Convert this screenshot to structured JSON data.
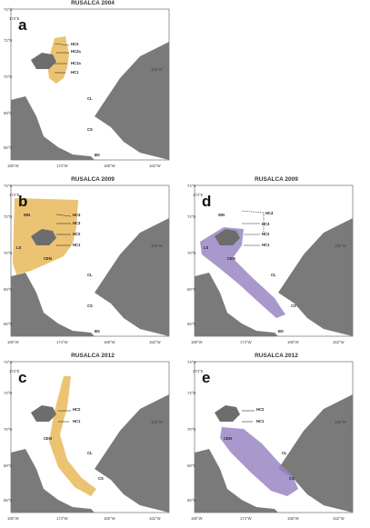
{
  "colors": {
    "land": "#7a7a7a",
    "yellow": "#e8b85a",
    "purple": "#9a86c2",
    "island": "#6d6d6d"
  },
  "panels": [
    {
      "id": "a",
      "label": "a",
      "title": "RUSALCA 2004",
      "sites": [
        "HC3",
        "HC2a",
        "HC1a",
        "HC1",
        "CL",
        "CS",
        "BS"
      ],
      "shade": "yellow"
    },
    {
      "id": "b",
      "label": "b",
      "title": "RUSALCA 2009",
      "sites": [
        "WN",
        "HC4",
        "HC3",
        "HC2",
        "HC1",
        "LS",
        "CEN",
        "CL",
        "CS",
        "BS"
      ],
      "shade": "yellow"
    },
    {
      "id": "d",
      "label": "d",
      "title": "RUSALCA 2009",
      "sites": [
        "WN",
        "HC4",
        "HC3",
        "HC2",
        "HC1",
        "LS",
        "CEN",
        "CL",
        "CS",
        "BS"
      ],
      "shade": "purple"
    },
    {
      "id": "c",
      "label": "c",
      "title": "RUSALCA 2012",
      "sites": [
        "HC2",
        "HC1",
        "CEN",
        "CL",
        "CS"
      ],
      "shade": "yellow"
    },
    {
      "id": "e",
      "label": "e",
      "title": "RUSALCA 2012",
      "sites": [
        "HC2",
        "HC1",
        "CEN",
        "CL",
        "CS"
      ],
      "shade": "purple"
    }
  ],
  "ticks": {
    "lat": [
      "74°N",
      "72°N",
      "70°N",
      "68°N",
      "66°N"
    ],
    "lon": [
      "180°W",
      "174°W",
      "168°W",
      "162°W"
    ],
    "lon_right": "156°W",
    "lon_top": "174°E"
  }
}
